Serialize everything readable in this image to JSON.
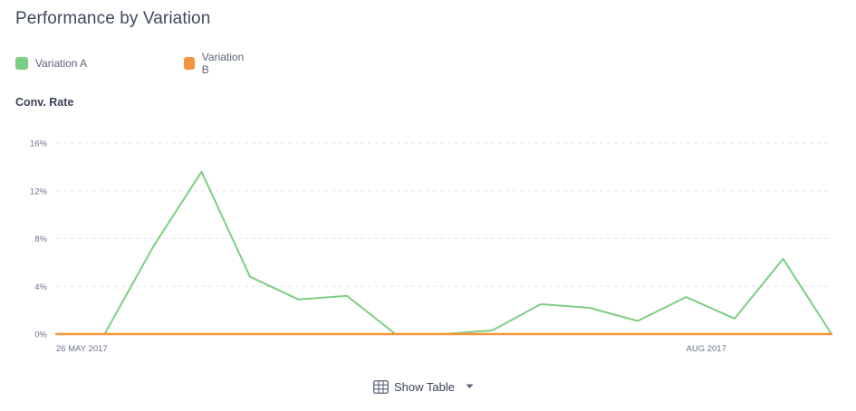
{
  "header": {
    "title": "Performance by Variation"
  },
  "legend": {
    "items": [
      {
        "label": "Variation A",
        "color": "#7dce82"
      },
      {
        "label": "Variation B",
        "color": "#f5953c"
      }
    ]
  },
  "metric": {
    "label": "Conv. Rate"
  },
  "footer": {
    "show_table_label": "Show Table"
  },
  "chart_data": {
    "type": "line",
    "ylabel": "Conv. Rate",
    "ylim": [
      0,
      16
    ],
    "yticks": [
      0,
      4,
      8,
      12,
      16
    ],
    "ytick_labels": [
      "0%",
      "4%",
      "8%",
      "12%",
      "16%"
    ],
    "xtick_labels": [
      {
        "index": 0,
        "label": "26 MAY 2017"
      },
      {
        "index": 13,
        "label": "AUG 2017"
      }
    ],
    "grid": true,
    "legend_position": "top-left",
    "series": [
      {
        "name": "Variation A",
        "color": "#7dce82",
        "values": [
          0,
          0,
          7.3,
          13.6,
          4.8,
          2.9,
          3.2,
          0,
          0,
          0.3,
          2.5,
          2.2,
          1.1,
          3.1,
          1.3,
          6.3,
          0
        ]
      },
      {
        "name": "Variation B",
        "color": "#f5953c",
        "values": [
          0,
          0,
          0,
          0,
          0,
          0,
          0,
          0,
          0,
          0,
          0,
          0,
          0,
          0,
          0,
          0,
          0
        ]
      }
    ]
  }
}
